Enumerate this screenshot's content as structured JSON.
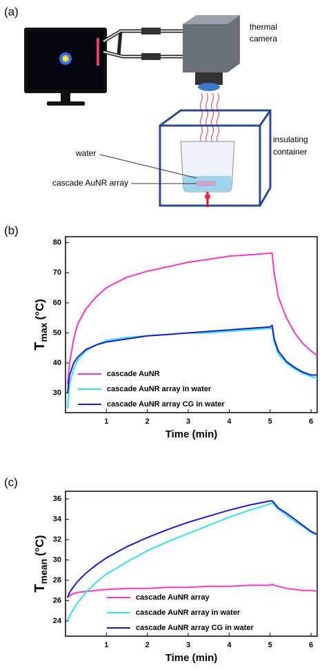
{
  "panel_a": {
    "label": "(a)",
    "camera_label": [
      "thermal",
      "camera"
    ],
    "container_label": [
      "insulating",
      "container"
    ],
    "water_label": "water",
    "array_label": "cascade AuNR array"
  },
  "chart_data": [
    {
      "type": "line",
      "label": "(b)",
      "xlabel": "Time (min)",
      "ylabel": {
        "text": "T",
        "subscript": "max",
        "unit": "(°C)"
      },
      "x": [
        0.05,
        0.1,
        0.2,
        0.3,
        0.5,
        0.75,
        1,
        1.5,
        2,
        2.5,
        3,
        3.5,
        4,
        4.5,
        5,
        5.05,
        5.1,
        5.2,
        5.4,
        5.6,
        5.8,
        6,
        6.15
      ],
      "xlim": [
        0,
        6.15
      ],
      "xticks": [
        1,
        2,
        3,
        4,
        5,
        6
      ],
      "ylim": [
        23.5,
        82
      ],
      "yticks": [
        30,
        40,
        50,
        60,
        70,
        80
      ],
      "legend": "lower left",
      "series": [
        {
          "name": "cascade AuNR",
          "color": "#ff33cc",
          "values": [
            33,
            40,
            48,
            53,
            58,
            62,
            65,
            68.5,
            70.5,
            72,
            73.5,
            74.5,
            75.5,
            76,
            76.5,
            76.5,
            70,
            62,
            55,
            50,
            46.5,
            44,
            42.5
          ]
        },
        {
          "name": "cascade AuNR array in water",
          "color": "#33e0ee",
          "values": [
            25,
            33,
            38,
            41,
            44,
            46,
            47.5,
            48.5,
            49,
            49.5,
            50,
            50,
            50.5,
            51,
            51.5,
            51.5,
            47,
            43,
            40,
            38,
            36.5,
            35.5,
            35
          ]
        },
        {
          "name": "cascade AuNR array CG in water",
          "color": "#1a1acc",
          "values": [
            30,
            36,
            40,
            42,
            44.5,
            46,
            47,
            48,
            49,
            49.5,
            50,
            50.5,
            51,
            51.5,
            52,
            52.5,
            48,
            44,
            40.5,
            38.5,
            37,
            36,
            36
          ]
        }
      ]
    },
    {
      "type": "line",
      "label": "(c)",
      "xlabel": "Time (min)",
      "ylabel": {
        "text": "T",
        "subscript": "mean",
        "unit": "(°C)"
      },
      "x": [
        0.05,
        0.1,
        0.2,
        0.3,
        0.5,
        0.75,
        1,
        1.5,
        2,
        2.5,
        3,
        3.5,
        4,
        4.5,
        5,
        5.05,
        5.1,
        5.2,
        5.4,
        5.6,
        5.8,
        6,
        6.15
      ],
      "xlim": [
        0,
        6.15
      ],
      "xticks": [
        1,
        2,
        3,
        4,
        5,
        6
      ],
      "ylim": [
        22.5,
        36.75
      ],
      "yticks": [
        24,
        26,
        28,
        30,
        32,
        34,
        36
      ],
      "legend": "lower right",
      "series": [
        {
          "name": "cascade AuNR array",
          "color": "#ff33cc",
          "values": [
            26.3,
            26.5,
            26.7,
            26.8,
            26.9,
            27,
            27.1,
            27.2,
            27.2,
            27.3,
            27.3,
            27.4,
            27.4,
            27.5,
            27.5,
            27.6,
            27.5,
            27.4,
            27.2,
            27.1,
            27,
            27,
            26.9
          ]
        },
        {
          "name": "cascade AuNR array in water",
          "color": "#33e0ee",
          "values": [
            24,
            24.5,
            25.2,
            25.8,
            26.8,
            27.8,
            28.6,
            29.8,
            30.9,
            31.8,
            32.6,
            33.4,
            34.2,
            34.9,
            35.5,
            35.6,
            35.4,
            35,
            34.4,
            33.8,
            33.3,
            32.7,
            32.5
          ]
        },
        {
          "name": "cascade AuNR array CG in water",
          "color": "#1a1acc",
          "values": [
            26.3,
            26.8,
            27.4,
            27.9,
            28.7,
            29.5,
            30.2,
            31.3,
            32.2,
            33,
            33.7,
            34.3,
            34.9,
            35.4,
            35.8,
            35.8,
            35.6,
            35.1,
            34.6,
            34,
            33.4,
            32.8,
            32.5
          ]
        }
      ]
    }
  ]
}
